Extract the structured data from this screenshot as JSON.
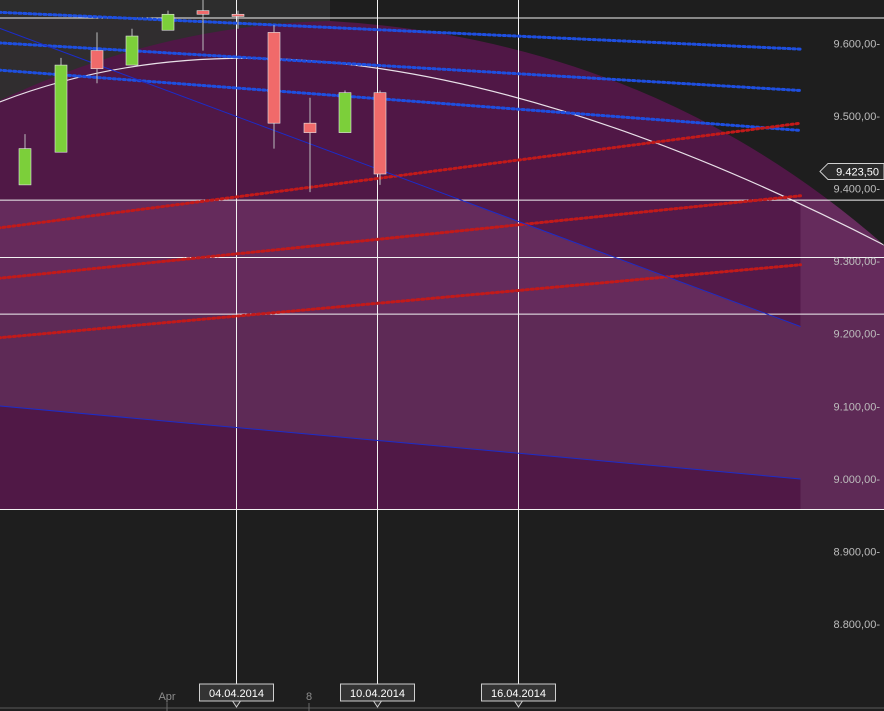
{
  "chart_data": {
    "type": "candlestick",
    "title": "",
    "y_axis": {
      "range": [
        8730,
        9650
      ],
      "ticks": [
        {
          "value": 9600,
          "label": "9.600,00-"
        },
        {
          "value": 9500,
          "label": "9.500,00-"
        },
        {
          "value": 9400,
          "label": "9.400,00-"
        },
        {
          "value": 9300,
          "label": "9.300,00-"
        },
        {
          "value": 9200,
          "label": "9.200,00-"
        },
        {
          "value": 9100,
          "label": "9.100,00-"
        },
        {
          "value": 9000,
          "label": "9.000,00-"
        },
        {
          "value": 8900,
          "label": "8.900,00-"
        },
        {
          "value": 8800,
          "label": "8.800,00-"
        }
      ]
    },
    "x_axis": {
      "start_date": "2014-03-26",
      "tick_labels": [
        {
          "date": "2014-04-01",
          "label": "Apr"
        },
        {
          "date": "2014-04-08",
          "label": "8"
        }
      ],
      "highlighted_dates": [
        {
          "date": "2014-04-04",
          "label": "04.04.2014"
        },
        {
          "date": "2014-04-10",
          "label": "10.04.2014"
        },
        {
          "date": "2014-04-16",
          "label": "16.04.2014"
        }
      ]
    },
    "last_price": {
      "value": 9423.5,
      "label": "9.423,50"
    },
    "candles": [
      {
        "date": "2014-03-26",
        "open": 9405,
        "close": 9455,
        "high": 9475,
        "low": 9405
      },
      {
        "date": "2014-03-27",
        "open": 9450,
        "close": 9570,
        "high": 9580,
        "low": 9450
      },
      {
        "date": "2014-03-28",
        "open": 9590,
        "close": 9565,
        "high": 9615,
        "low": 9545
      },
      {
        "date": "2014-03-31",
        "open": 9570,
        "close": 9610,
        "high": 9620,
        "low": 9570
      },
      {
        "date": "2014-04-01",
        "open": 9618,
        "close": 9640,
        "high": 9645,
        "low": 9618
      },
      {
        "date": "2014-04-02",
        "open": 9645,
        "close": 9640,
        "high": 9660,
        "low": 9590
      },
      {
        "date": "2014-04-03",
        "open": 9640,
        "close": 9637,
        "high": 9645,
        "low": 9620
      },
      {
        "date": "2014-04-04",
        "open": 9615,
        "close": 9490,
        "high": 9625,
        "low": 9455
      },
      {
        "date": "2014-04-07",
        "open": 9490,
        "close": 9477,
        "high": 9525,
        "low": 9395
      },
      {
        "date": "2014-04-08",
        "open": 9477,
        "close": 9532,
        "high": 9535,
        "low": 9477
      },
      {
        "date": "2014-04-09",
        "open": 9532,
        "close": 9420,
        "high": 9535,
        "low": 9405
      }
    ],
    "horizontal_lines": [
      9384,
      9305,
      9227,
      8958
    ],
    "overlay_lines": [
      {
        "style": "dotted",
        "color": "#1e4fe0",
        "points": [
          [
            "2014-03-20",
            9650
          ],
          [
            "2014-04-28",
            9592
          ]
        ]
      },
      {
        "style": "dotted",
        "color": "#1e4fe0",
        "points": [
          [
            "2014-03-20",
            9610
          ],
          [
            "2014-04-28",
            9535
          ]
        ]
      },
      {
        "style": "dotted",
        "color": "#1e4fe0",
        "points": [
          [
            "2014-03-20",
            9575
          ],
          [
            "2014-04-28",
            9480
          ]
        ]
      },
      {
        "style": "dotted",
        "color": "#c21a1a",
        "points": [
          [
            "2014-03-20",
            9325
          ],
          [
            "2014-04-28",
            9490
          ]
        ]
      },
      {
        "style": "dotted",
        "color": "#c21a1a",
        "points": [
          [
            "2014-03-20",
            9260
          ],
          [
            "2014-04-28",
            9390
          ]
        ]
      },
      {
        "style": "dotted",
        "color": "#c21a1a",
        "points": [
          [
            "2014-03-20",
            9180
          ],
          [
            "2014-04-28",
            9295
          ]
        ]
      },
      {
        "style": "solid",
        "color": "#1c2cc9",
        "points": [
          [
            "2014-03-20",
            9680
          ],
          [
            "2014-04-28",
            9210
          ]
        ]
      },
      {
        "style": "solid",
        "color": "#1c2cc9",
        "points": [
          [
            "2014-03-20",
            9115
          ],
          [
            "2014-04-28",
            9000
          ]
        ]
      }
    ],
    "colors": {
      "background": "#1e1e1e",
      "up_candle": "#7ccf3a",
      "down_candle": "#f06a6a",
      "band_light": "#652b5c",
      "band_dark": "#501846"
    }
  }
}
